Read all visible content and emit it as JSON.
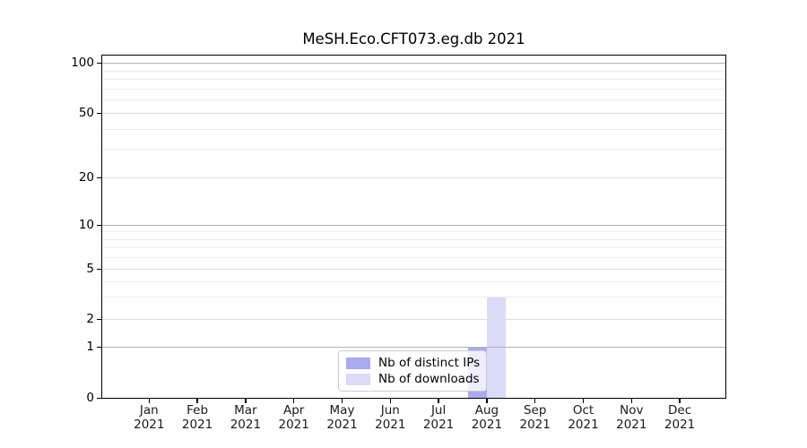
{
  "figure": {
    "background": "#ffffff"
  },
  "chart_data": {
    "type": "bar",
    "title": "MeSH.Eco.CFT073.eg.db 2021",
    "categories": [
      "Jan 2021",
      "Feb 2021",
      "Mar 2021",
      "Apr 2021",
      "May 2021",
      "Jun 2021",
      "Jul 2021",
      "Aug 2021",
      "Sep 2021",
      "Oct 2021",
      "Nov 2021",
      "Dec 2021"
    ],
    "series": [
      {
        "name": "Nb of distinct IPs",
        "color": "#aaaaed",
        "values": [
          0,
          0,
          0,
          0,
          0,
          0,
          0,
          1,
          0,
          0,
          0,
          0
        ]
      },
      {
        "name": "Nb of downloads",
        "color": "#dbdbf7",
        "values": [
          0,
          0,
          0,
          0,
          0,
          0,
          0,
          3,
          0,
          0,
          0,
          0
        ]
      }
    ],
    "xlabel": "",
    "ylabel": "",
    "yscale": "symlog",
    "yticks": [
      0,
      1,
      2,
      5,
      10,
      20,
      50,
      100
    ],
    "ylim": [
      0,
      115
    ],
    "grid": "major+minor horizontal",
    "legend_position": "lower center inside plot"
  },
  "legend": {
    "items": [
      {
        "label": "Nb of distinct IPs",
        "color": "#aaaaed"
      },
      {
        "label": "Nb of downloads",
        "color": "#dbdbf7"
      }
    ]
  }
}
